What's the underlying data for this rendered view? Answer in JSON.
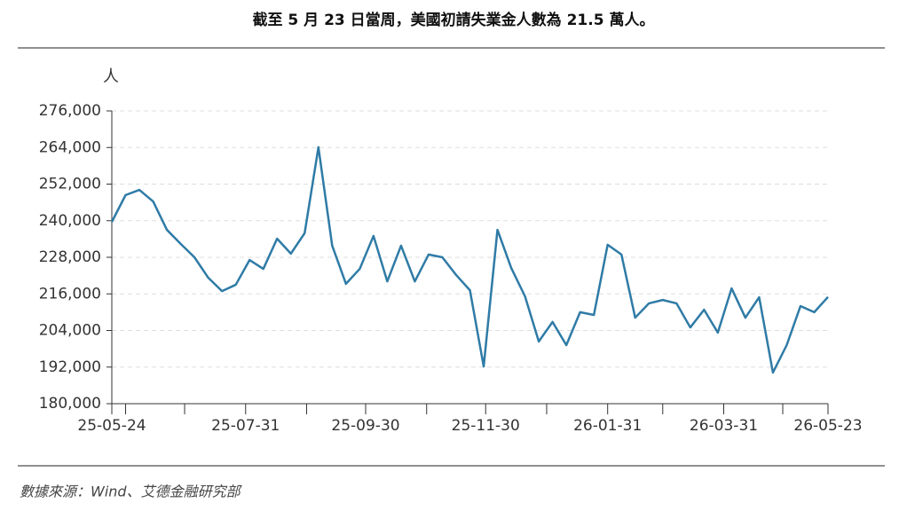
{
  "chart_data": {
    "type": "line",
    "title": "截至 5 月 23 日當周，美國初請失業金人數為 21.5 萬人。",
    "y_label": "人",
    "source": "數據來源：Wind、艾德金融研究部",
    "x": [
      "25-05-24",
      "25-05-31",
      "25-06-07",
      "25-06-14",
      "25-06-21",
      "25-06-28",
      "25-07-05",
      "25-07-12",
      "25-07-19",
      "25-07-26",
      "25-08-02",
      "25-08-09",
      "25-08-16",
      "25-08-23",
      "25-08-30",
      "25-09-06",
      "25-09-13",
      "25-09-20",
      "25-09-27",
      "25-10-04",
      "25-10-11",
      "25-10-18",
      "25-10-25",
      "25-11-01",
      "25-11-08",
      "25-11-15",
      "25-11-22",
      "25-11-29",
      "25-12-06",
      "25-12-13",
      "25-12-20",
      "25-12-27",
      "26-01-03",
      "26-01-10",
      "26-01-17",
      "26-01-24",
      "26-01-31",
      "26-02-07",
      "26-02-14",
      "26-02-21",
      "26-02-28",
      "26-03-07",
      "26-03-14",
      "26-03-21",
      "26-03-28",
      "26-04-04",
      "26-04-11",
      "26-04-18",
      "26-04-25",
      "26-05-02",
      "26-05-09",
      "26-05-16",
      "26-05-23"
    ],
    "series": [
      {
        "name": "初請失業金人數",
        "color": "#2f7ba6",
        "values": [
          239600,
          248400,
          250100,
          246300,
          237000,
          232400,
          228000,
          221300,
          216900,
          219000,
          227100,
          224200,
          234100,
          229200,
          235900,
          264100,
          231800,
          219300,
          224200,
          235000,
          220100,
          231800,
          220100,
          228900,
          228000,
          222200,
          217200,
          192200,
          237000,
          224500,
          215200,
          200400,
          206800,
          199200,
          210000,
          209100,
          232100,
          228900,
          208200,
          212900,
          214000,
          212900,
          205000,
          210800,
          203300,
          217800,
          208200,
          214900,
          190200,
          199200,
          212000,
          210000,
          215000
        ]
      }
    ],
    "xlim": [
      "25-05-24",
      "26-05-23"
    ],
    "xticks": [
      "25-05-24",
      "25-07-31",
      "25-09-30",
      "25-11-30",
      "26-01-31",
      "26-03-31",
      "26-05-23"
    ],
    "xminor_ticks": [
      "25-05-31",
      "25-06-30",
      "25-08-31",
      "25-10-31",
      "25-12-31",
      "26-02-28",
      "26-04-30"
    ],
    "ylim": [
      180000,
      276000
    ],
    "yticks": [
      {
        "value": 180000,
        "label": "180,000"
      },
      {
        "value": 192000,
        "label": "192,000"
      },
      {
        "value": 204000,
        "label": "204,000"
      },
      {
        "value": 216000,
        "label": "216,000"
      },
      {
        "value": 228000,
        "label": "228,000"
      },
      {
        "value": 240000,
        "label": "240,000"
      },
      {
        "value": 252000,
        "label": "252,000"
      },
      {
        "value": 264000,
        "label": "264,000"
      },
      {
        "value": 276000,
        "label": "276,000"
      }
    ],
    "grid": true
  }
}
